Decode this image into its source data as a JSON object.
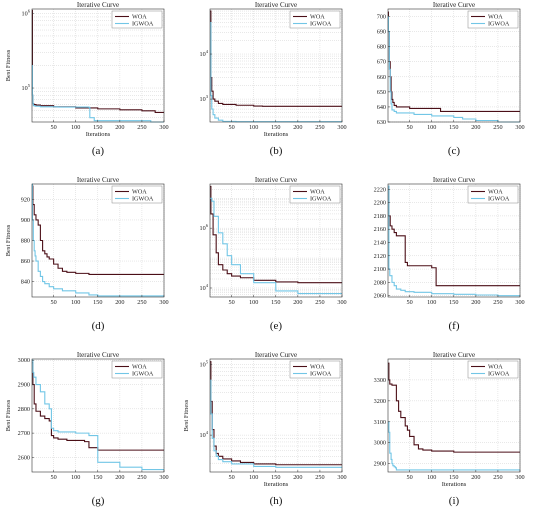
{
  "colors": {
    "woa": "#4b0f17",
    "igwoa": "#72c6e6",
    "grid": "#d2d2d2",
    "axis": "#333333"
  },
  "chart_data": [
    {
      "id": "a",
      "caption": "(a)",
      "type": "line",
      "title": "Iterative Curve",
      "xlabel": "Iterations",
      "ylabel": "Best Fitness",
      "xlim": [
        1,
        300
      ],
      "yscale": "log",
      "ylim": [
        35000,
        1150000
      ],
      "xticks": [
        50,
        100,
        150,
        200,
        250,
        300
      ],
      "yticks": [
        {
          "v": 100000,
          "base": "10",
          "exp": "5"
        },
        {
          "v": 1000000,
          "base": "10",
          "exp": "6"
        }
      ],
      "legend": "top-right",
      "grid": true,
      "series": [
        {
          "name": "WOA",
          "x": [
            1,
            2,
            3,
            5,
            10,
            20,
            50,
            100,
            150,
            200,
            250,
            280,
            300
          ],
          "y": [
            1100000,
            80000,
            62000,
            60000,
            59000,
            58000,
            56000,
            54000,
            52500,
            51000,
            49500,
            47000,
            47000
          ]
        },
        {
          "name": "IGWOA",
          "x": [
            1,
            2,
            3,
            4,
            8,
            20,
            60,
            130,
            132,
            140,
            142,
            200,
            265,
            270,
            300
          ],
          "y": [
            200000,
            80000,
            62000,
            58000,
            57000,
            56000,
            55500,
            55000,
            40000,
            40000,
            36500,
            36500,
            36500,
            35000,
            35000
          ]
        }
      ]
    },
    {
      "id": "b",
      "caption": "(b)",
      "type": "line",
      "title": "Iterative Curve",
      "xlabel": "Iterations",
      "ylabel": "",
      "xlim": [
        1,
        300
      ],
      "yscale": "log",
      "ylim": [
        310,
        100000
      ],
      "xticks": [
        50,
        100,
        150,
        200,
        250,
        300
      ],
      "yticks": [
        {
          "v": 1000,
          "base": "10",
          "exp": "3"
        },
        {
          "v": 10000,
          "base": "10",
          "exp": "4"
        }
      ],
      "legend": "top-right",
      "grid": true,
      "series": [
        {
          "name": "WOA",
          "x": [
            1,
            3,
            5,
            8,
            12,
            20,
            30,
            60,
            100,
            120,
            200,
            300
          ],
          "y": [
            90000,
            3000,
            1500,
            1000,
            900,
            800,
            760,
            730,
            700,
            690,
            690,
            690
          ]
        },
        {
          "name": "IGWOA",
          "x": [
            1,
            3,
            5,
            8,
            12,
            20,
            30,
            60,
            300
          ],
          "y": [
            50000,
            1200,
            600,
            450,
            380,
            340,
            320,
            315,
            315
          ]
        }
      ]
    },
    {
      "id": "c",
      "caption": "(c)",
      "type": "line",
      "title": "Iterative Curve",
      "xlabel": "",
      "ylabel": "",
      "xlim": [
        1,
        300
      ],
      "yscale": "linear",
      "ylim": [
        630,
        705
      ],
      "xticks": [
        50,
        100,
        150,
        200,
        250,
        300
      ],
      "yticks": [
        {
          "v": 630,
          "label": "630"
        },
        {
          "v": 640,
          "label": "640"
        },
        {
          "v": 650,
          "label": "650"
        },
        {
          "v": 660,
          "label": "660"
        },
        {
          "v": 670,
          "label": "670"
        },
        {
          "v": 680,
          "label": "680"
        },
        {
          "v": 690,
          "label": "690"
        },
        {
          "v": 700,
          "label": "700"
        }
      ],
      "legend": "top-right",
      "grid": true,
      "series": [
        {
          "name": "WOA",
          "x": [
            1,
            2,
            4,
            6,
            8,
            10,
            12,
            15,
            20,
            30,
            50,
            100,
            120,
            200,
            300
          ],
          "y": [
            703,
            690,
            670,
            660,
            650,
            645,
            643,
            641,
            640,
            640,
            639,
            639,
            637,
            637,
            637
          ]
        },
        {
          "name": "IGWOA",
          "x": [
            1,
            2,
            4,
            6,
            8,
            10,
            15,
            20,
            40,
            60,
            100,
            150,
            170,
            200,
            250,
            270,
            300
          ],
          "y": [
            700,
            690,
            665,
            650,
            642,
            638,
            637,
            636,
            636,
            635,
            634,
            633,
            632,
            631,
            630,
            630,
            630
          ]
        }
      ]
    },
    {
      "id": "d",
      "caption": "(d)",
      "type": "line",
      "title": "Iterative Curve",
      "xlabel": "",
      "ylabel": "Best Fitness",
      "xlim": [
        1,
        300
      ],
      "yscale": "linear",
      "ylim": [
        825,
        935
      ],
      "xticks": [
        50,
        100,
        150,
        200,
        250,
        300
      ],
      "yticks": [
        {
          "v": 840,
          "label": "840"
        },
        {
          "v": 860,
          "label": "860"
        },
        {
          "v": 880,
          "label": "880"
        },
        {
          "v": 900,
          "label": "900"
        },
        {
          "v": 920,
          "label": "920"
        }
      ],
      "legend": "top-right",
      "grid": true,
      "series": [
        {
          "name": "WOA",
          "x": [
            1,
            3,
            6,
            10,
            15,
            20,
            25,
            30,
            35,
            40,
            50,
            60,
            70,
            80,
            100,
            130,
            150,
            300
          ],
          "y": [
            933,
            915,
            905,
            900,
            895,
            880,
            870,
            867,
            864,
            862,
            857,
            853,
            850,
            849,
            848,
            847,
            847,
            847
          ]
        },
        {
          "name": "IGWOA",
          "x": [
            1,
            2,
            4,
            6,
            8,
            10,
            15,
            20,
            25,
            30,
            40,
            50,
            70,
            100,
            130,
            150,
            300
          ],
          "y": [
            935,
            900,
            880,
            870,
            865,
            860,
            850,
            845,
            840,
            838,
            835,
            833,
            831,
            829,
            827,
            826,
            826
          ]
        }
      ]
    },
    {
      "id": "e",
      "caption": "(e)",
      "type": "line",
      "title": "Iterative Curve",
      "xlabel": "",
      "ylabel": "",
      "xlim": [
        1,
        300
      ],
      "yscale": "log",
      "ylim": [
        5000,
        30000000
      ],
      "xticks": [
        50,
        100,
        150,
        200,
        250,
        300
      ],
      "yticks": [
        {
          "v": 10000,
          "base": "10",
          "exp": "4"
        },
        {
          "v": 1000000,
          "base": "10",
          "exp": "6"
        }
      ],
      "legend": "top-right",
      "grid": true,
      "series": [
        {
          "name": "WOA",
          "x": [
            1,
            3,
            8,
            15,
            20,
            30,
            40,
            50,
            70,
            100,
            150,
            200,
            300
          ],
          "y": [
            25000000,
            3000000,
            600000,
            150000,
            60000,
            40000,
            30000,
            25000,
            22000,
            18000,
            16000,
            15000,
            15000
          ]
        },
        {
          "name": "IGWOA",
          "x": [
            1,
            5,
            10,
            20,
            30,
            40,
            50,
            70,
            100,
            150,
            200,
            300
          ],
          "y": [
            10000000,
            8000000,
            2500000,
            700000,
            300000,
            120000,
            60000,
            30000,
            15000,
            8000,
            6500,
            6500
          ]
        }
      ]
    },
    {
      "id": "f",
      "caption": "(f)",
      "type": "line",
      "title": "Iterative Curve",
      "xlabel": "",
      "ylabel": "",
      "xlim": [
        1,
        300
      ],
      "yscale": "linear",
      "ylim": [
        2058,
        2228
      ],
      "xticks": [
        50,
        100,
        150,
        200,
        250,
        300
      ],
      "yticks": [
        {
          "v": 2060,
          "label": "2060"
        },
        {
          "v": 2080,
          "label": "2080"
        },
        {
          "v": 2100,
          "label": "2100"
        },
        {
          "v": 2120,
          "label": "2120"
        },
        {
          "v": 2140,
          "label": "2140"
        },
        {
          "v": 2160,
          "label": "2160"
        },
        {
          "v": 2180,
          "label": "2180"
        },
        {
          "v": 2200,
          "label": "2200"
        },
        {
          "v": 2220,
          "label": "2220"
        }
      ],
      "legend": "top-right",
      "grid": true,
      "series": [
        {
          "name": "WOA",
          "x": [
            1,
            3,
            6,
            10,
            15,
            20,
            35,
            40,
            45,
            100,
            110,
            300
          ],
          "y": [
            2225,
            2180,
            2165,
            2160,
            2155,
            2150,
            2150,
            2110,
            2105,
            2102,
            2075,
            2075
          ]
        },
        {
          "name": "IGWOA",
          "x": [
            1,
            3,
            5,
            10,
            15,
            20,
            30,
            40,
            60,
            100,
            150,
            200,
            250,
            300
          ],
          "y": [
            2225,
            2100,
            2090,
            2080,
            2075,
            2070,
            2068,
            2066,
            2065,
            2063,
            2062,
            2061,
            2060,
            2060
          ]
        }
      ]
    },
    {
      "id": "g",
      "caption": "(g)",
      "type": "line",
      "title": "Iterative Curve",
      "xlabel": "",
      "ylabel": "Best Fitness",
      "xlim": [
        1,
        300
      ],
      "yscale": "linear",
      "ylim": [
        2540,
        3005
      ],
      "xticks": [
        50,
        100,
        150,
        200,
        250,
        300
      ],
      "yticks": [
        {
          "v": 2600,
          "label": "2600"
        },
        {
          "v": 2700,
          "label": "2700"
        },
        {
          "v": 2800,
          "label": "2800"
        },
        {
          "v": 2900,
          "label": "2900"
        },
        {
          "v": 3000,
          "label": "3000"
        }
      ],
      "legend": "top-right",
      "grid": true,
      "series": [
        {
          "name": "WOA",
          "x": [
            1,
            3,
            6,
            10,
            20,
            30,
            40,
            45,
            50,
            60,
            80,
            120,
            130,
            150,
            300
          ],
          "y": [
            2990,
            2900,
            2820,
            2790,
            2770,
            2760,
            2750,
            2690,
            2680,
            2675,
            2670,
            2665,
            2640,
            2630,
            2630
          ]
        },
        {
          "name": "IGWOA",
          "x": [
            1,
            3,
            5,
            10,
            20,
            30,
            40,
            45,
            50,
            60,
            100,
            130,
            150,
            200,
            250,
            300
          ],
          "y": [
            3000,
            2950,
            2930,
            2900,
            2870,
            2820,
            2800,
            2720,
            2710,
            2705,
            2700,
            2690,
            2580,
            2560,
            2550,
            2550
          ]
        }
      ]
    },
    {
      "id": "h",
      "caption": "(h)",
      "type": "line",
      "title": "Iterative Curve",
      "xlabel": "Iterations",
      "ylabel": "Best Fitness",
      "xlim": [
        1,
        300
      ],
      "yscale": "log",
      "ylim": [
        3000,
        120000
      ],
      "xticks": [
        50,
        100,
        150,
        200,
        250,
        300
      ],
      "yticks": [
        {
          "v": 10000,
          "base": "10",
          "exp": "4"
        },
        {
          "v": 100000,
          "base": "10",
          "exp": "5"
        }
      ],
      "legend": "top-right",
      "grid": true,
      "series": [
        {
          "name": "WOA",
          "x": [
            1,
            3,
            6,
            10,
            15,
            20,
            30,
            50,
            70,
            100,
            150,
            300
          ],
          "y": [
            110000,
            30000,
            12000,
            7000,
            5500,
            5000,
            4600,
            4300,
            4100,
            3900,
            3800,
            3800
          ]
        },
        {
          "name": "IGWOA",
          "x": [
            1,
            3,
            6,
            10,
            15,
            20,
            30,
            50,
            100,
            150,
            300
          ],
          "y": [
            60000,
            20000,
            9000,
            6000,
            5000,
            4500,
            4200,
            3900,
            3600,
            3500,
            3500
          ]
        }
      ]
    },
    {
      "id": "i",
      "caption": "(i)",
      "type": "line",
      "title": "Iterative Curve",
      "xlabel": "Iterations",
      "ylabel": "",
      "xlim": [
        1,
        300
      ],
      "yscale": "linear",
      "ylim": [
        2860,
        3400
      ],
      "xticks": [
        50,
        100,
        150,
        200,
        250,
        300
      ],
      "yticks": [
        {
          "v": 2900,
          "label": "2900"
        },
        {
          "v": 3000,
          "label": "3000"
        },
        {
          "v": 3100,
          "label": "3100"
        },
        {
          "v": 3200,
          "label": "3200"
        },
        {
          "v": 3300,
          "label": "3300"
        }
      ],
      "legend": "top-right",
      "grid": true,
      "series": [
        {
          "name": "WOA",
          "x": [
            1,
            3,
            5,
            10,
            20,
            25,
            30,
            40,
            45,
            50,
            60,
            70,
            80,
            100,
            150,
            300
          ],
          "y": [
            3380,
            3300,
            3280,
            3275,
            3200,
            3150,
            3120,
            3080,
            3060,
            3030,
            2990,
            2970,
            2965,
            2960,
            2955,
            2955
          ]
        },
        {
          "name": "IGWOA",
          "x": [
            1,
            3,
            5,
            8,
            10,
            12,
            15,
            18,
            20,
            300
          ],
          "y": [
            3100,
            3050,
            2950,
            2920,
            2900,
            2890,
            2885,
            2880,
            2870,
            2870
          ]
        }
      ]
    }
  ]
}
